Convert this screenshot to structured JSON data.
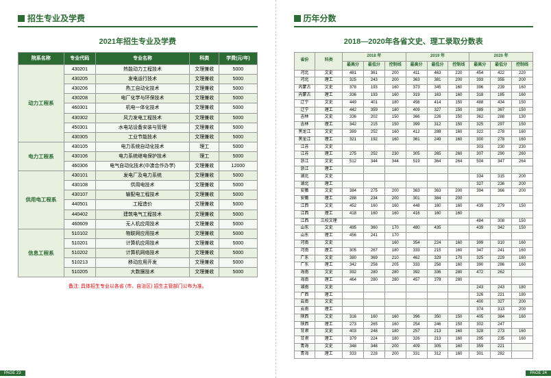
{
  "left": {
    "section": "招生专业及学费",
    "title": "2021年招生专业及学费",
    "headers": [
      "院系名称",
      "专业代码",
      "专业名称",
      "科类",
      "学费(元/年)"
    ],
    "depts": [
      {
        "name": "动力工程系",
        "rows": [
          [
            "430201",
            "热能动力工程技术",
            "文理兼收",
            "5000"
          ],
          [
            "430205",
            "发电运行技术",
            "文理兼收",
            "5000"
          ],
          [
            "430206",
            "热工自动化技术",
            "文理兼收",
            "5000"
          ],
          [
            "430208",
            "电厂化学与环保技术",
            "文理兼收",
            "5000"
          ],
          [
            "460301",
            "机电一体化技术",
            "文理兼收",
            "5000"
          ],
          [
            "430302",
            "风力发电工程技术",
            "文理兼收",
            "5000"
          ],
          [
            "450301",
            "水电站设备安装与管理",
            "文理兼收",
            "5000"
          ],
          [
            "430305",
            "工业节能技术",
            "文理兼收",
            "5000"
          ]
        ]
      },
      {
        "name": "电力工程系",
        "rows": [
          [
            "430105",
            "电力系统自动化技术",
            "理工",
            "5000"
          ],
          [
            "430106",
            "电力系统继电保护技术",
            "理工",
            "5000"
          ],
          [
            "460306",
            "电气自动化技术(中澳合作办学)",
            "文理兼收",
            "12000"
          ]
        ]
      },
      {
        "name": "供用电工程系",
        "rows": [
          [
            "430101",
            "发电厂及电力系统",
            "文理兼收",
            "5000"
          ],
          [
            "430108",
            "供用电技术",
            "文理兼收",
            "5000"
          ],
          [
            "430107",
            "输配电工程技术",
            "文理兼收",
            "5000"
          ],
          [
            "440501",
            "工程造价",
            "文理兼收",
            "5000"
          ],
          [
            "440402",
            "建筑电气工程技术",
            "文理兼收",
            "5000"
          ],
          [
            "460609",
            "无人机应用技术",
            "文理兼收",
            "5000"
          ]
        ]
      },
      {
        "name": "信息工程系",
        "rows": [
          [
            "510102",
            "物联网应用技术",
            "文理兼收",
            "5000"
          ],
          [
            "510201",
            "计算机应用技术",
            "文理兼收",
            "5000"
          ],
          [
            "510202",
            "计算机网络技术",
            "文理兼收",
            "5000"
          ],
          [
            "510213",
            "移动应用开发",
            "文理兼收",
            "5000"
          ],
          [
            "510205",
            "大数据技术",
            "文理兼收",
            "5000"
          ]
        ]
      }
    ],
    "note": "备注: 具体招生专业以各省 (市、自治区) 招生主管部门公布为准。",
    "page": "PAGE 23"
  },
  "right": {
    "section": "历年分数",
    "title": "2018—2020年各省文史、理工录取分数表",
    "yearHeaders": [
      "2018 年",
      "2019 年",
      "2020 年"
    ],
    "subHeaders": [
      "最高分",
      "最低分",
      "控制线"
    ],
    "provCol": "省份",
    "catCol": "科类",
    "rows": [
      [
        "河北",
        "文史",
        "481",
        "361",
        "200",
        "411",
        "463",
        "220",
        "454",
        "422",
        "220"
      ],
      [
        "河北",
        "理工",
        "325",
        "243",
        "200",
        "363",
        "381",
        "200",
        "393",
        "355",
        "200"
      ],
      [
        "内蒙古",
        "文史",
        "378",
        "193",
        "160",
        "373",
        "345",
        "160",
        "396",
        "239",
        "160"
      ],
      [
        "内蒙古",
        "理工",
        "336",
        "193",
        "160",
        "319",
        "163",
        "160",
        "318",
        "185",
        "160"
      ],
      [
        "辽宁",
        "文史",
        "449",
        "401",
        "180",
        "456",
        "414",
        "150",
        "488",
        "434",
        "150"
      ],
      [
        "辽宁",
        "理工",
        "442",
        "359",
        "180",
        "409",
        "327",
        "150",
        "389",
        "367",
        "150"
      ],
      [
        "吉林",
        "文史",
        "336",
        "202",
        "150",
        "366",
        "226",
        "150",
        "362",
        "288",
        "130"
      ],
      [
        "吉林",
        "理工",
        "342",
        "215",
        "150",
        "399",
        "312",
        "150",
        "325",
        "297",
        "150"
      ],
      [
        "黑龙江",
        "文史",
        "389",
        "252",
        "160",
        "412",
        "288",
        "160",
        "322",
        "278",
        "160"
      ],
      [
        "黑龙江",
        "理工",
        "321",
        "192",
        "160",
        "361",
        "249",
        "160",
        "300",
        "278",
        "160"
      ],
      [
        "江苏",
        "文史",
        "",
        "",
        "",
        "",
        "",
        "",
        "303",
        "230",
        "230"
      ],
      [
        "江苏",
        "理工",
        "275",
        "252",
        "230",
        "305",
        "265",
        "260",
        "307",
        "290",
        "260"
      ],
      [
        "浙江",
        "文史",
        "512",
        "344",
        "344",
        "519",
        "364",
        "264",
        "504",
        "347",
        "264"
      ],
      [
        "浙江",
        "理工",
        "",
        "",
        "",
        "",
        "",
        "",
        "",
        "",
        ""
      ],
      [
        "湖北",
        "文史",
        "",
        "",
        "",
        "",
        "",
        "",
        "334",
        "315",
        "200"
      ],
      [
        "湖北",
        "理工",
        "",
        "",
        "",
        "",
        "",
        "",
        "327",
        "236",
        "200"
      ],
      [
        "安徽",
        "文史",
        "384",
        "275",
        "200",
        "363",
        "363",
        "200",
        "394",
        "366",
        "200"
      ],
      [
        "安徽",
        "理工",
        "288",
        "234",
        "200",
        "301",
        "384",
        "200",
        "",
        "",
        ""
      ],
      [
        "江西",
        "文史",
        "452",
        "160",
        "160",
        "448",
        "160",
        "160",
        "439",
        "279",
        "150"
      ],
      [
        "江西",
        "理工",
        "418",
        "160",
        "160",
        "416",
        "160",
        "160",
        "",
        "",
        ""
      ],
      [
        "江西",
        "三校文理",
        "",
        "",
        "",
        "",
        "",
        "",
        "484",
        "308",
        "150"
      ],
      [
        "山东",
        "文史",
        "495",
        "360",
        "170",
        "480",
        "435",
        "",
        "439",
        "342",
        "150"
      ],
      [
        "山东",
        "理工",
        "456",
        "241",
        "170",
        "",
        "",
        "",
        "",
        "",
        ""
      ],
      [
        "河南",
        "文史",
        "",
        "",
        "160",
        "354",
        "224",
        "160",
        "399",
        "310",
        "160"
      ],
      [
        "河南",
        "理工",
        "305",
        "267",
        "180",
        "333",
        "215",
        "160",
        "347",
        "241",
        "160"
      ],
      [
        "广东",
        "文史",
        "380",
        "369",
        "210",
        "462",
        "329",
        "170",
        "325",
        "229",
        "160"
      ],
      [
        "广东",
        "理工",
        "342",
        "258",
        "205",
        "333",
        "258",
        "160",
        "390",
        "286",
        "160"
      ],
      [
        "海南",
        "文史",
        "392",
        "280",
        "280",
        "392",
        "336",
        "280",
        "472",
        "262",
        ""
      ],
      [
        "海南",
        "理工",
        "464",
        "280",
        "280",
        "457",
        "378",
        "280",
        "",
        "",
        ""
      ],
      [
        "湖南",
        "文史",
        "",
        "",
        "",
        "",
        "",
        "",
        "243",
        "243",
        "180"
      ],
      [
        "广西",
        "理工",
        "",
        "",
        "",
        "",
        "",
        "",
        "326",
        "221",
        "180"
      ],
      [
        "云南",
        "文史",
        "",
        "",
        "",
        "",
        "",
        "",
        "400",
        "327",
        "200"
      ],
      [
        "云南",
        "理工",
        "",
        "",
        "",
        "",
        "",
        "",
        "374",
        "313",
        "200"
      ],
      [
        "陕西",
        "文史",
        "316",
        "160",
        "160",
        "396",
        "350",
        "150",
        "405",
        "384",
        "160"
      ],
      [
        "陕西",
        "理工",
        "273",
        "265",
        "160",
        "254",
        "246",
        "150",
        "302",
        "247",
        ""
      ],
      [
        "甘肃",
        "文史",
        "403",
        "248",
        "180",
        "257",
        "213",
        "160",
        "328",
        "273",
        "160"
      ],
      [
        "甘肃",
        "理工",
        "379",
        "224",
        "180",
        "326",
        "213",
        "160",
        "295",
        "235",
        "160"
      ],
      [
        "青海",
        "文史",
        "348",
        "348",
        "200",
        "409",
        "305",
        "160",
        "359",
        "221",
        ""
      ],
      [
        "青海",
        "理工",
        "333",
        "228",
        "200",
        "331",
        "312",
        "160",
        "301",
        "282",
        ""
      ]
    ],
    "page": "PAGE 24"
  }
}
